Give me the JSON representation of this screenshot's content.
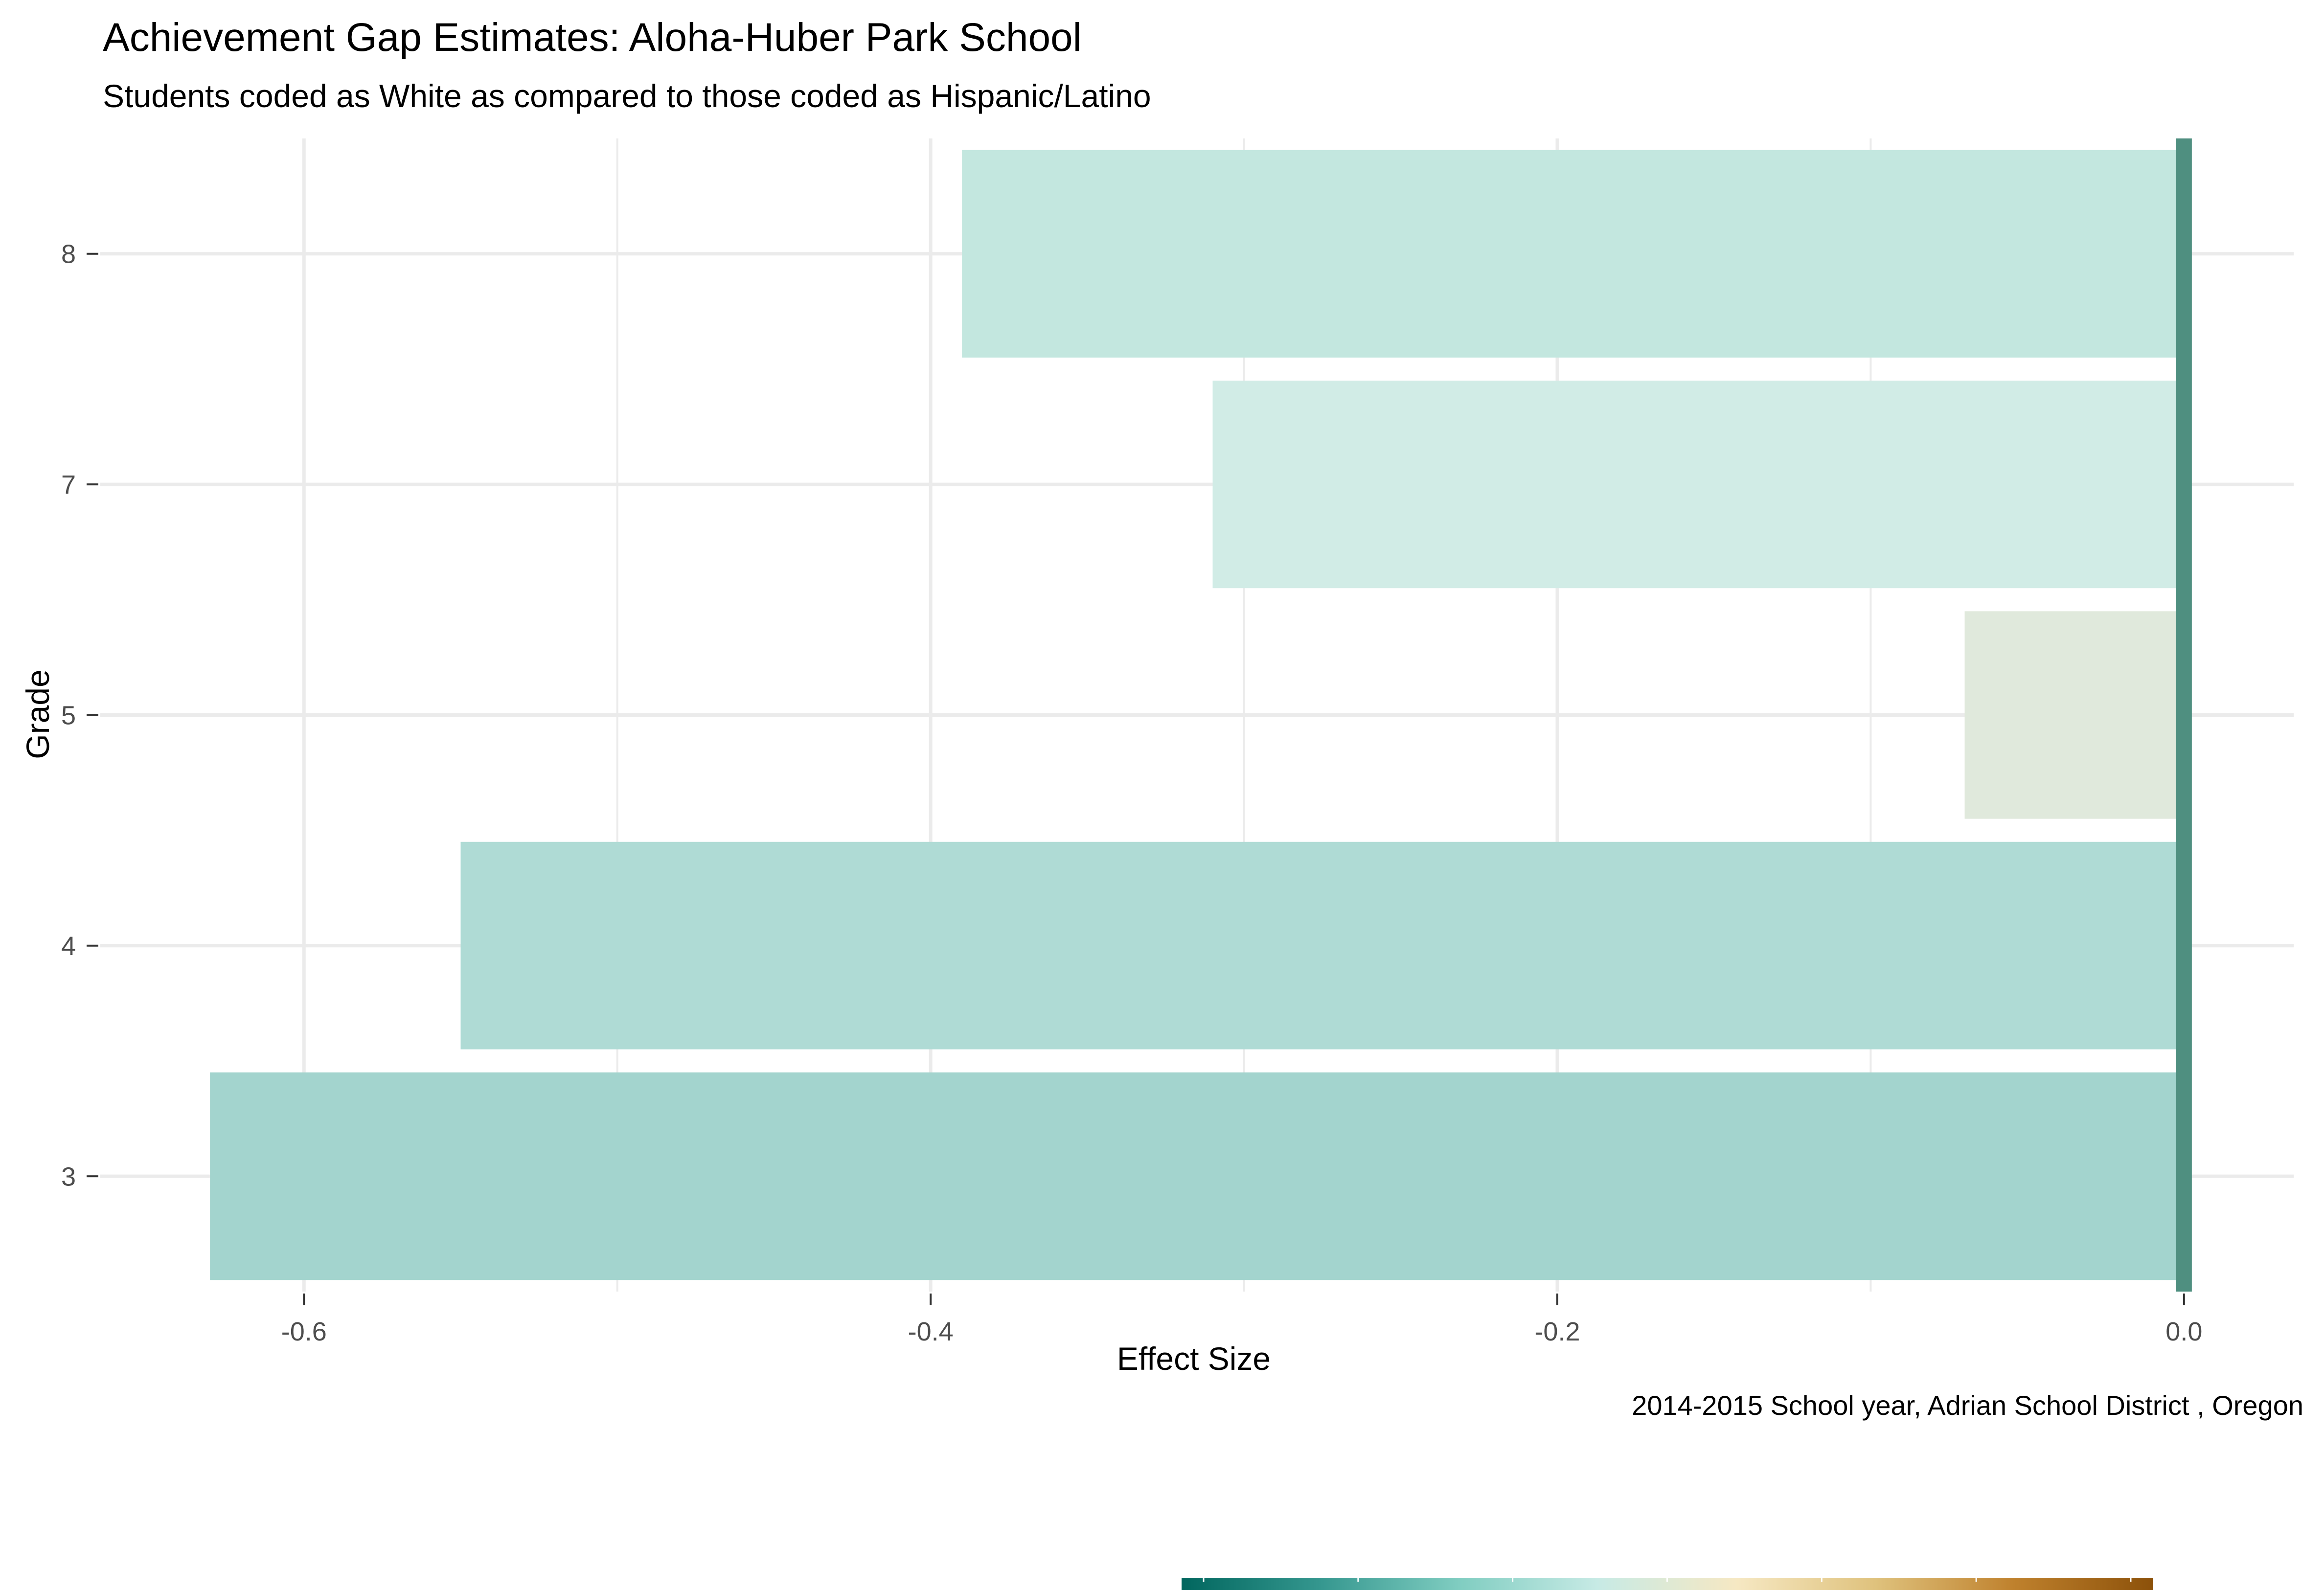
{
  "chart_data": {
    "type": "bar",
    "orientation": "horizontal",
    "title": "Achievement Gap Estimates: Aloha-Huber Park School",
    "subtitle": "Students coded as White as compared to those coded as Hispanic/Latino",
    "caption": "2014-2015 School year,  Adrian School District , Oregon",
    "xlabel": "Effect Size",
    "ylabel": "Grade",
    "categories": [
      "3",
      "4",
      "5",
      "7",
      "8"
    ],
    "values": [
      -0.63,
      -0.55,
      -0.07,
      -0.31,
      -0.39
    ],
    "xlim": [
      -0.665,
      0.035
    ],
    "xticks": [
      -0.6,
      -0.4,
      -0.2,
      0.0
    ],
    "xtick_labels": [
      "-0.6",
      "-0.4",
      "-0.2",
      "0.0"
    ],
    "reference_line": 0,
    "grid": true,
    "colors": {
      "bar_fills": [
        "#a3d4ce",
        "#afdbd5",
        "#e0e9dc",
        "#d1ece6",
        "#c3e7df"
      ],
      "reference_line": "#4f8f80",
      "gridline": "#ebebeb"
    },
    "colorbar": {
      "gradient": [
        "#01665e",
        "#35978f",
        "#80cdc1",
        "#c7eae5",
        "#f6e8c3",
        "#dfc27d",
        "#bf812d",
        "#8c510a"
      ]
    }
  }
}
